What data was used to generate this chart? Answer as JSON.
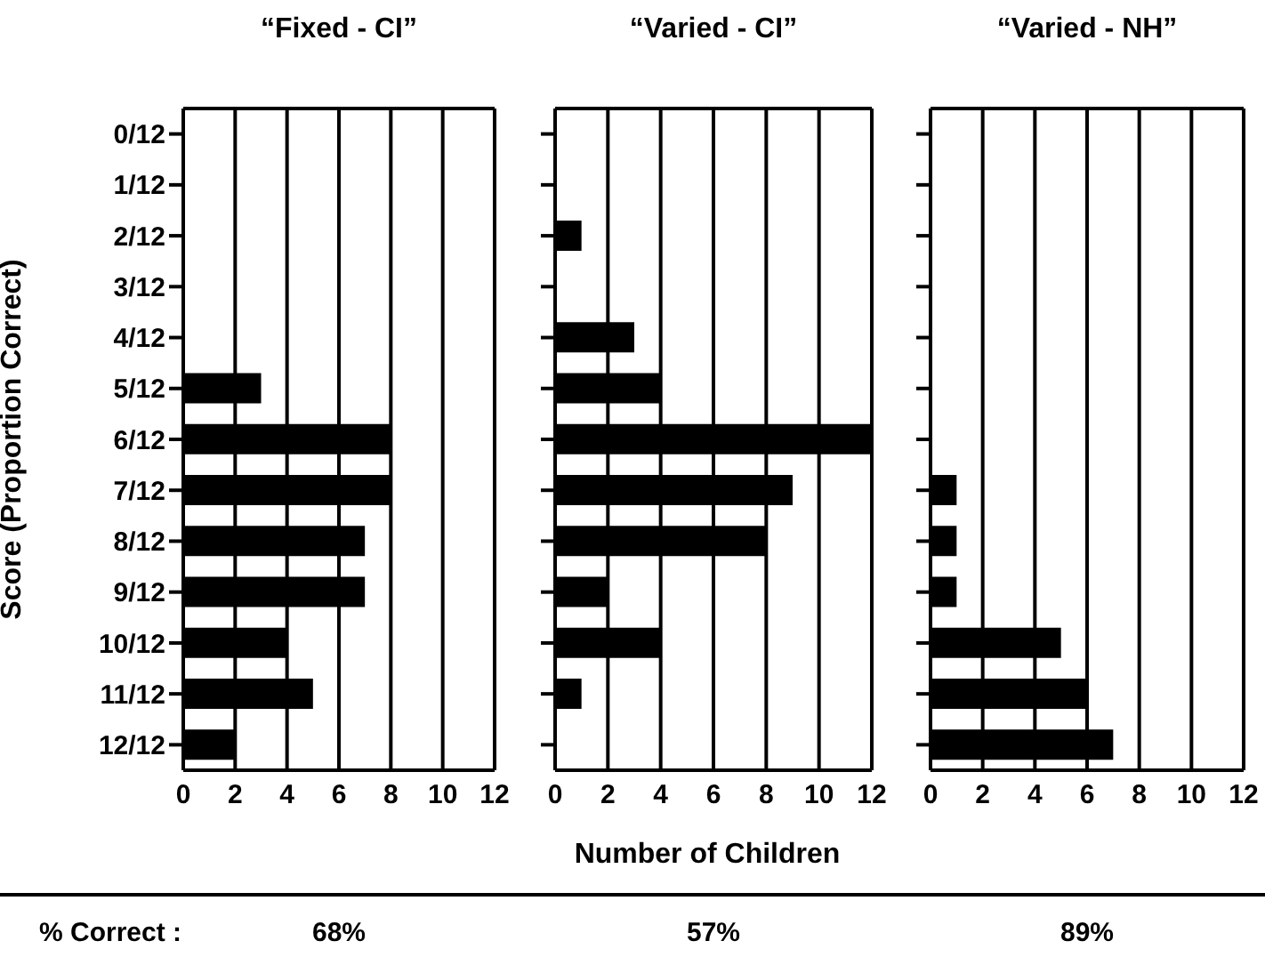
{
  "chart_data": [
    {
      "type": "bar",
      "orientation": "horizontal",
      "title": "“Fixed - CI”",
      "ylabel": "Score (Proportion Correct)",
      "categories": [
        "0/12",
        "1/12",
        "2/12",
        "3/12",
        "4/12",
        "5/12",
        "6/12",
        "7/12",
        "8/12",
        "9/12",
        "10/12",
        "11/12",
        "12/12"
      ],
      "values": [
        0,
        0,
        0,
        0,
        0,
        3,
        8,
        8,
        7,
        7,
        4,
        5,
        2
      ],
      "color": "#000000",
      "xlim": [
        0,
        12
      ],
      "xticks": [
        0,
        2,
        4,
        6,
        8,
        10,
        12
      ],
      "grid": "x",
      "annotations": [
        "% Correct :",
        "68%"
      ]
    },
    {
      "type": "bar",
      "orientation": "horizontal",
      "title": "“Varied - CI”",
      "xlabel": "Number of Children",
      "categories": [
        null,
        null,
        null,
        null,
        null,
        null,
        null,
        null,
        null,
        null,
        null,
        null,
        null
      ],
      "values": [
        0,
        0,
        1,
        0,
        3,
        4,
        12,
        9,
        8,
        2,
        4,
        1,
        0
      ],
      "color": "#000000",
      "xlim": [
        0,
        12
      ],
      "xticks": [
        0,
        2,
        4,
        6,
        8,
        10,
        12
      ],
      "grid": "x",
      "tick_labels": "x",
      "annotations": [
        "57%"
      ]
    },
    {
      "type": "bar",
      "orientation": "horizontal",
      "title": "“Varied - NH”",
      "categories": [
        null,
        null,
        null,
        null,
        null,
        null,
        null,
        null,
        null,
        null,
        null,
        null,
        null
      ],
      "values": [
        0,
        0,
        0,
        0,
        0,
        0,
        0,
        1,
        1,
        1,
        5,
        6,
        7
      ],
      "color": "#000000",
      "xlim": [
        0,
        12
      ],
      "xticks": [
        0,
        2,
        4,
        6,
        8,
        10,
        12
      ],
      "grid": "x",
      "tick_labels": "x",
      "annotations": [
        "89%"
      ]
    }
  ]
}
